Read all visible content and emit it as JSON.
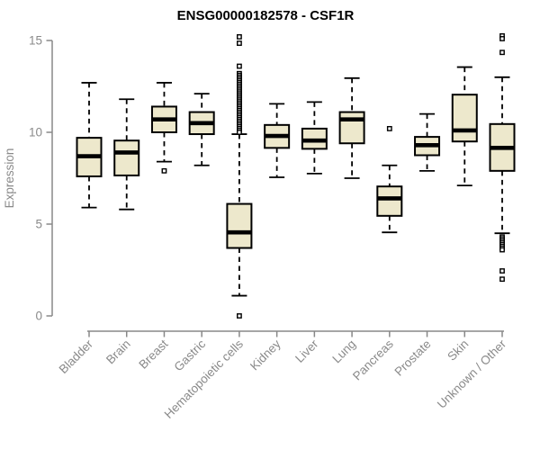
{
  "chart_data": {
    "type": "boxplot",
    "title": "ENSG00000182578 - CSF1R",
    "xlabel": "",
    "ylabel": "Expression",
    "ylim": [
      0,
      15
    ],
    "yticks": [
      0,
      5,
      10,
      15
    ],
    "grid": false,
    "outlier_marker": "open-square",
    "colors": {
      "box_fill": "#ede8cc",
      "box_stroke": "#000000",
      "median": "#000000",
      "whisker": "#000000",
      "axis": "#888888",
      "title": "#000000",
      "background": "#ffffff"
    },
    "categories": [
      "Bladder",
      "Brain",
      "Breast",
      "Gastric",
      "Hematopoietic cells",
      "Kidney",
      "Liver",
      "Lung",
      "Pancreas",
      "Prostate",
      "Skin",
      "Unknown / Other"
    ],
    "series": [
      {
        "name": "Bladder",
        "low": 5.9,
        "q1": 7.6,
        "median": 8.7,
        "q3": 9.7,
        "high": 12.7,
        "outliers": []
      },
      {
        "name": "Brain",
        "low": 5.8,
        "q1": 7.65,
        "median": 8.9,
        "q3": 9.55,
        "high": 11.8,
        "outliers": []
      },
      {
        "name": "Breast",
        "low": 8.4,
        "q1": 10.0,
        "median": 10.7,
        "q3": 11.4,
        "high": 12.7,
        "outliers": [
          7.9
        ]
      },
      {
        "name": "Gastric",
        "low": 8.2,
        "q1": 9.9,
        "median": 10.5,
        "q3": 11.1,
        "high": 12.1,
        "outliers": []
      },
      {
        "name": "Hematopoietic cells",
        "low": 1.1,
        "q1": 3.7,
        "median": 4.55,
        "q3": 6.1,
        "high": 9.9,
        "outliers": [
          0.0,
          15.2,
          14.85,
          13.6,
          13.2,
          13.1,
          13.0,
          12.9,
          12.8,
          12.7,
          12.6,
          12.5,
          12.4,
          12.3,
          12.2,
          12.1,
          12.0,
          11.9,
          11.8,
          11.7,
          11.6,
          11.5,
          11.4,
          11.3,
          11.2,
          11.1,
          11.0,
          10.9,
          10.8,
          10.7,
          10.6,
          10.5,
          10.4,
          10.3,
          10.2,
          10.1,
          10.0
        ]
      },
      {
        "name": "Kidney",
        "low": 7.55,
        "q1": 9.15,
        "median": 9.8,
        "q3": 10.4,
        "high": 11.55,
        "outliers": []
      },
      {
        "name": "Liver",
        "low": 7.75,
        "q1": 9.1,
        "median": 9.55,
        "q3": 10.2,
        "high": 11.65,
        "outliers": []
      },
      {
        "name": "Lung",
        "low": 7.5,
        "q1": 9.4,
        "median": 10.7,
        "q3": 11.1,
        "high": 12.95,
        "outliers": []
      },
      {
        "name": "Pancreas",
        "low": 4.55,
        "q1": 5.45,
        "median": 6.4,
        "q3": 7.05,
        "high": 8.2,
        "outliers": [
          10.2
        ]
      },
      {
        "name": "Prostate",
        "low": 7.9,
        "q1": 8.75,
        "median": 9.3,
        "q3": 9.75,
        "high": 11.0,
        "outliers": []
      },
      {
        "name": "Skin",
        "low": 7.1,
        "q1": 9.5,
        "median": 10.1,
        "q3": 12.05,
        "high": 13.55,
        "outliers": []
      },
      {
        "name": "Unknown / Other",
        "low": 4.5,
        "q1": 7.9,
        "median": 9.15,
        "q3": 10.45,
        "high": 13.0,
        "outliers": [
          15.25,
          15.1,
          14.35,
          4.3,
          4.2,
          4.1,
          4.0,
          3.9,
          3.8,
          3.7,
          3.6,
          2.45,
          2.0
        ]
      }
    ]
  }
}
